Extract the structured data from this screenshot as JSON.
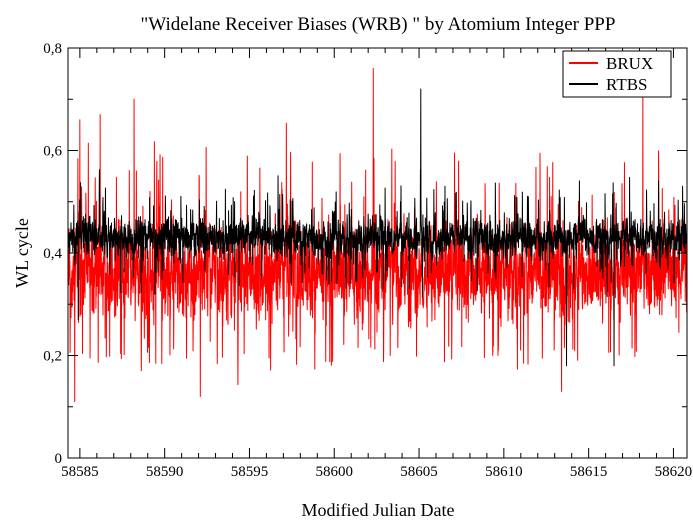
{
  "chart_data": {
    "type": "line",
    "title": "\"Widelane Receiver Biases (WRB) \" by Atomium Integer PPP",
    "xlabel": "Modified Julian Date",
    "ylabel": "WL cycle",
    "xlim": [
      58584.3,
      58620.8
    ],
    "ylim": [
      0,
      0.8
    ],
    "x_ticks": [
      "58585",
      "58590",
      "58595",
      "58600",
      "58605",
      "58610",
      "58615",
      "58620"
    ],
    "x_tick_values": [
      58585,
      58590,
      58595,
      58600,
      58605,
      58610,
      58615,
      58620
    ],
    "y_ticks": [
      "0",
      "0,2",
      "0,4",
      "0,6",
      "0,8"
    ],
    "y_tick_values": [
      0,
      0.2,
      0.4,
      0.6,
      0.8
    ],
    "grid": false,
    "legend_position": "top-right",
    "series": [
      {
        "name": "BRUX",
        "color": "#ff0000",
        "samples_per_day": 96,
        "mean": 0.36,
        "spread": 0.12,
        "min": 0.11,
        "max": 0.76,
        "notable_points": [
          [
            58584.7,
            0.11
          ],
          [
            58585.0,
            0.66
          ],
          [
            58586.2,
            0.67
          ],
          [
            58588.2,
            0.7
          ],
          [
            58592.1,
            0.12
          ],
          [
            58602.3,
            0.76
          ],
          [
            58613.4,
            0.13
          ],
          [
            58618.2,
            0.71
          ]
        ]
      },
      {
        "name": "RTBS",
        "color": "#000000",
        "samples_per_day": 96,
        "mean": 0.43,
        "spread": 0.05,
        "min": 0.17,
        "max": 0.72,
        "notable_points": [
          [
            58584.9,
            0.27
          ],
          [
            58605.1,
            0.72
          ],
          [
            58613.7,
            0.18
          ],
          [
            58616.5,
            0.18
          ]
        ]
      }
    ]
  }
}
